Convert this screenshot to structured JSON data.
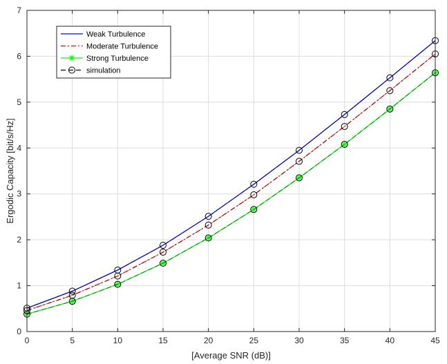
{
  "chart_data": {
    "type": "line",
    "xlabel": "[Average SNR (dB)]",
    "ylabel": "Ergodic Capacity [bit/s/Hz]",
    "xlim": [
      0,
      45
    ],
    "ylim": [
      0,
      7
    ],
    "xticks": [
      0,
      5,
      10,
      15,
      20,
      25,
      30,
      35,
      40,
      45
    ],
    "yticks": [
      0,
      1,
      2,
      3,
      4,
      5,
      6,
      7
    ],
    "grid": true,
    "legend_position": "top-left",
    "x": [
      0,
      5,
      10,
      15,
      20,
      25,
      30,
      35,
      40,
      45
    ],
    "series": [
      {
        "name": "Weak Turbulence",
        "style": "solid",
        "color": "#0000ff",
        "values": [
          0.51,
          0.88,
          1.34,
          1.88,
          2.51,
          3.21,
          3.95,
          4.73,
          5.53,
          6.34
        ]
      },
      {
        "name": "Moderate Turbulence",
        "style": "dash-dot",
        "color": "#ff0000",
        "values": [
          0.46,
          0.79,
          1.21,
          1.73,
          2.32,
          2.98,
          3.71,
          4.47,
          5.25,
          6.05
        ]
      },
      {
        "name": "Strong Turbulence",
        "style": "solid",
        "marker": "asterisk",
        "color": "#00ff00",
        "values": [
          0.38,
          0.66,
          1.03,
          1.49,
          2.04,
          2.66,
          3.35,
          4.08,
          4.85,
          5.64
        ]
      },
      {
        "name": "simulation",
        "style": "dashed",
        "marker": "circle",
        "color": "#000000",
        "overlays": [
          "Weak Turbulence",
          "Moderate Turbulence",
          "Strong Turbulence"
        ]
      }
    ]
  }
}
